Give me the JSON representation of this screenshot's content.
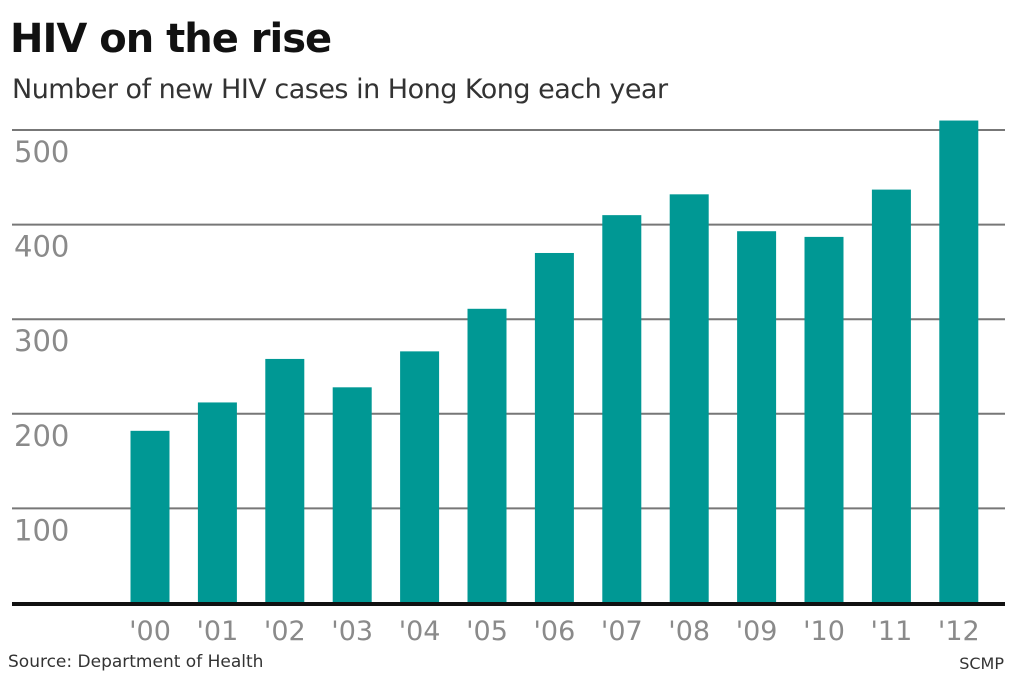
{
  "chart_data": {
    "type": "bar",
    "title": "HIV on the rise",
    "subtitle": "Number of new HIV cases in Hong Kong each year",
    "categories": [
      "'00",
      "'01",
      "'02",
      "'03",
      "'04",
      "'05",
      "'06",
      "'07",
      "'08",
      "'09",
      "'10",
      "'11",
      "'12"
    ],
    "values": [
      182,
      212,
      258,
      228,
      266,
      311,
      370,
      410,
      432,
      393,
      387,
      437,
      510
    ],
    "yticks": [
      "100",
      "200",
      "300",
      "400",
      "500"
    ],
    "ylim": [
      0,
      500
    ],
    "grid": true,
    "bar_color": "#009894",
    "source": "Source: Department of Health",
    "credit": "SCMP"
  }
}
